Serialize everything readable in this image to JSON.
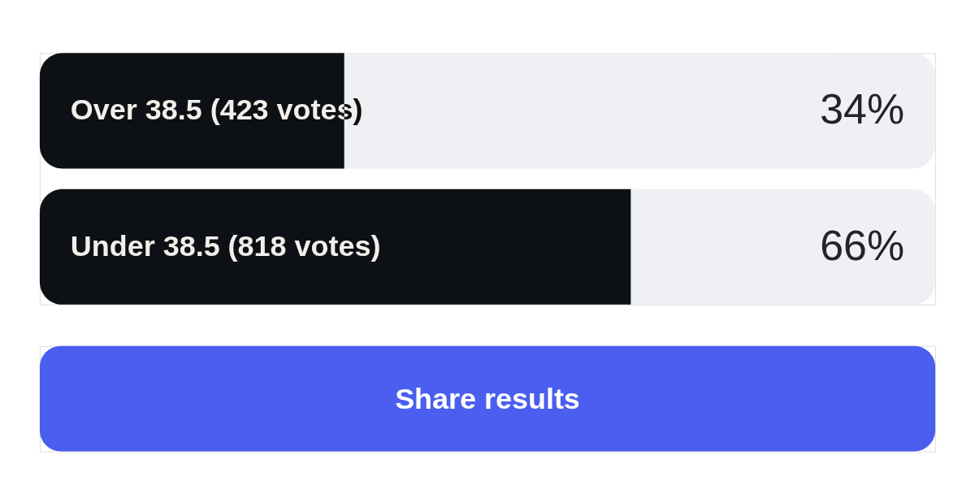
{
  "chart_data": {
    "type": "bar",
    "orientation": "horizontal",
    "categories": [
      "Over 38.5 (423 votes)",
      "Under 38.5 (818 votes)"
    ],
    "values": [
      34,
      66
    ],
    "color": "#0d1014",
    "value_labels": [
      "34%",
      "66%"
    ],
    "xlim": [
      0,
      100
    ],
    "tick_labels": false,
    "annotations": [
      "Share results"
    ]
  }
}
